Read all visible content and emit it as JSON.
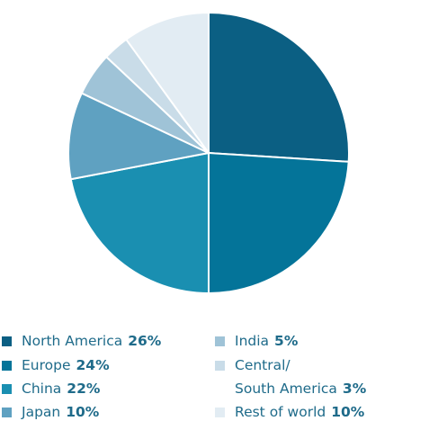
{
  "chart_data": {
    "type": "pie",
    "slices": [
      {
        "label": "North America",
        "value": 26,
        "display": "26%",
        "color": "#0b5f83"
      },
      {
        "label": "Europe",
        "value": 24,
        "display": "24%",
        "color": "#047499"
      },
      {
        "label": "China",
        "value": 22,
        "display": "22%",
        "color": "#1a8fb1"
      },
      {
        "label": "Japan",
        "value": 10,
        "display": "10%",
        "color": "#5fa1c1"
      },
      {
        "label": "India",
        "value": 5,
        "display": "5%",
        "color": "#9fc3d7"
      },
      {
        "label": "Central/",
        "label_line2": "South America",
        "value": 3,
        "display": "3%",
        "color": "#c9dce8"
      },
      {
        "label": "Rest of world",
        "value": 10,
        "display": "10%",
        "color": "#e2ecf3"
      }
    ],
    "start_angle_deg": 0,
    "direction": "clockwise",
    "legend_placement": "bottom"
  }
}
